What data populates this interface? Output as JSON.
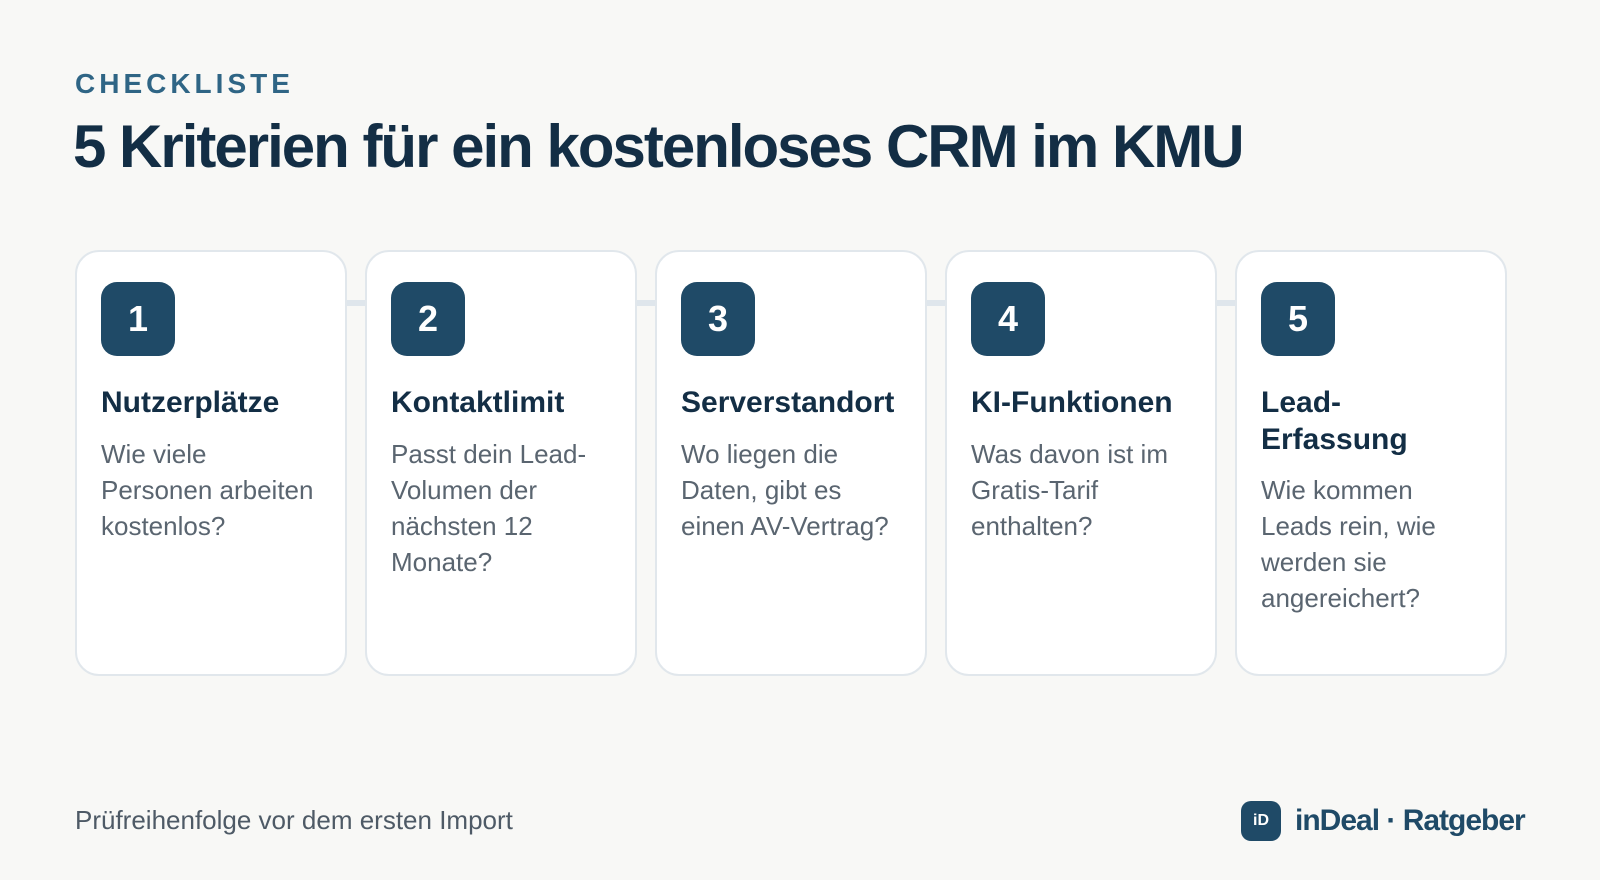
{
  "header": {
    "eyebrow": "CHECKLISTE",
    "title": "5 Kriterien für ein kostenloses CRM im KMU"
  },
  "cards": [
    {
      "number": "1",
      "title": "Nutzerplätze",
      "text": "Wie viele Personen arbeiten kostenlos?"
    },
    {
      "number": "2",
      "title": "Kontaktlimit",
      "text": "Passt dein Lead-Volumen der nächsten 12 Monate?"
    },
    {
      "number": "3",
      "title": "Serverstandort",
      "text": "Wo liegen die Daten, gibt es einen AV-Vertrag?"
    },
    {
      "number": "4",
      "title": "KI-Funktionen",
      "text": "Was davon ist im Gratis-Tarif enthalten?"
    },
    {
      "number": "5",
      "title": "Lead-Erfassung",
      "text": "Wie kommen Leads rein, wie werden sie angereichert?"
    }
  ],
  "footer": {
    "caption": "Prüfreihenfolge vor dem ersten Import",
    "brand_icon": "iD",
    "brand_name": "inDeal · Ratgeber"
  },
  "colors": {
    "accent": "#1f4a67",
    "eyebrow": "#2f6585",
    "title": "#132e45",
    "background": "#f8f8f6"
  }
}
